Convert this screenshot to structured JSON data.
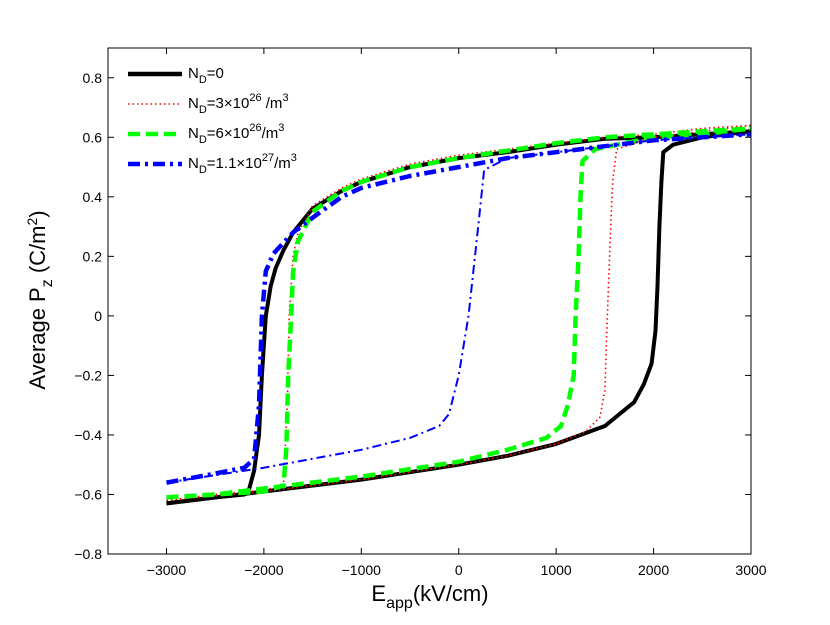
{
  "chart_data": {
    "type": "line",
    "title": "",
    "xlabel": {
      "main": "E",
      "sub": "app",
      "rest": "(kV/cm)"
    },
    "ylabel": {
      "main": "Average P",
      "sub": "z",
      "paren_open": " (C/m",
      "sup": "2",
      "paren_close": ")"
    },
    "xlim": [
      -3600,
      3000
    ],
    "ylim": [
      -0.8,
      0.9
    ],
    "xticks": [
      -3000,
      -2000,
      -1000,
      0,
      1000,
      2000,
      3000
    ],
    "xtick_labels": [
      "−3000",
      "−2000",
      "−1000",
      "0",
      "1000",
      "2000",
      "3000"
    ],
    "yticks": [
      -0.8,
      -0.6,
      -0.4,
      -0.2,
      0,
      0.2,
      0.4,
      0.6,
      0.8
    ],
    "ytick_labels": [
      "−0.8",
      "−0.6",
      "−0.4",
      "−0.2",
      "0",
      "0.2",
      "0.4",
      "0.6",
      "0.8"
    ],
    "grid": false,
    "legend_position": "top-left",
    "series": [
      {
        "name": "N_D=0",
        "legend": {
          "a": "N",
          "sub": "D",
          "b": "=0",
          "sup": "",
          "c": ""
        },
        "color": "#000000",
        "dash": "solid",
        "upper": [
          [
            -3000,
            -0.63
          ],
          [
            -2500,
            -0.61
          ],
          [
            -2200,
            -0.6
          ],
          [
            -2150,
            -0.58
          ],
          [
            -2100,
            -0.52
          ],
          [
            -2050,
            -0.4
          ],
          [
            -2020,
            -0.2
          ],
          [
            -1980,
            0.0
          ],
          [
            -1930,
            0.1
          ],
          [
            -1880,
            0.16
          ],
          [
            -1800,
            0.22
          ],
          [
            -1700,
            0.28
          ],
          [
            -1600,
            0.32
          ],
          [
            -1500,
            0.36
          ],
          [
            -1200,
            0.42
          ],
          [
            -1000,
            0.45
          ],
          [
            -500,
            0.5
          ],
          [
            0,
            0.53
          ],
          [
            500,
            0.55
          ],
          [
            1000,
            0.575
          ],
          [
            1500,
            0.595
          ],
          [
            2000,
            0.6
          ],
          [
            2500,
            0.61
          ],
          [
            3000,
            0.62
          ]
        ],
        "lower": [
          [
            -3000,
            -0.63
          ],
          [
            -2000,
            -0.59
          ],
          [
            -1000,
            -0.55
          ],
          [
            0,
            -0.5
          ],
          [
            500,
            -0.47
          ],
          [
            1000,
            -0.43
          ],
          [
            1500,
            -0.37
          ],
          [
            1800,
            -0.29
          ],
          [
            1900,
            -0.23
          ],
          [
            1980,
            -0.16
          ],
          [
            2020,
            -0.05
          ],
          [
            2040,
            0.1
          ],
          [
            2060,
            0.3
          ],
          [
            2080,
            0.45
          ],
          [
            2100,
            0.55
          ],
          [
            2200,
            0.575
          ],
          [
            2500,
            0.6
          ],
          [
            3000,
            0.62
          ]
        ]
      },
      {
        "name": "N_D=3×10^26 /m^3",
        "legend": {
          "a": "N",
          "sub": "D",
          "b": "=3×10",
          "sup": "26",
          "c": " /m",
          "sup2": "3"
        },
        "color": "#ff0000",
        "dash": "dotted",
        "upper": [
          [
            -3000,
            -0.62
          ],
          [
            -2500,
            -0.6
          ],
          [
            -2000,
            -0.585
          ],
          [
            -1800,
            -0.57
          ],
          [
            -1760,
            -0.3
          ],
          [
            -1740,
            0.0
          ],
          [
            -1700,
            0.2
          ],
          [
            -1650,
            0.28
          ],
          [
            -1500,
            0.37
          ],
          [
            -1200,
            0.43
          ],
          [
            -1000,
            0.46
          ],
          [
            -500,
            0.51
          ],
          [
            0,
            0.54
          ],
          [
            500,
            0.56
          ],
          [
            1000,
            0.58
          ],
          [
            1500,
            0.6
          ],
          [
            2000,
            0.61
          ],
          [
            2500,
            0.63
          ],
          [
            3000,
            0.64
          ]
        ],
        "lower": [
          [
            -3000,
            -0.62
          ],
          [
            -2000,
            -0.59
          ],
          [
            -1000,
            -0.55
          ],
          [
            0,
            -0.5
          ],
          [
            500,
            -0.47
          ],
          [
            1000,
            -0.43
          ],
          [
            1300,
            -0.39
          ],
          [
            1450,
            -0.34
          ],
          [
            1500,
            -0.25
          ],
          [
            1520,
            -0.05
          ],
          [
            1560,
            0.3
          ],
          [
            1580,
            0.45
          ],
          [
            1620,
            0.56
          ],
          [
            2000,
            0.6
          ],
          [
            2500,
            0.62
          ],
          [
            3000,
            0.64
          ]
        ]
      },
      {
        "name": "N_D=6×10^26/m^3",
        "legend": {
          "a": "N",
          "sub": "D",
          "b": "=6×10",
          "sup": "26",
          "c": "/m",
          "sup2": "3"
        },
        "color": "#00ff00",
        "dash": "dashed",
        "upper": [
          [
            -3000,
            -0.61
          ],
          [
            -2500,
            -0.6
          ],
          [
            -2000,
            -0.59
          ],
          [
            -1800,
            -0.57
          ],
          [
            -1770,
            -0.45
          ],
          [
            -1750,
            -0.2
          ],
          [
            -1720,
            0.0
          ],
          [
            -1700,
            0.15
          ],
          [
            -1650,
            0.25
          ],
          [
            -1500,
            0.35
          ],
          [
            -1200,
            0.42
          ],
          [
            -1000,
            0.45
          ],
          [
            -500,
            0.5
          ],
          [
            0,
            0.53
          ],
          [
            500,
            0.555
          ],
          [
            1000,
            0.58
          ],
          [
            1500,
            0.6
          ],
          [
            2000,
            0.61
          ],
          [
            2500,
            0.62
          ],
          [
            3000,
            0.63
          ]
        ],
        "lower": [
          [
            -3000,
            -0.61
          ],
          [
            -2500,
            -0.6
          ],
          [
            -2000,
            -0.58
          ],
          [
            -1000,
            -0.54
          ],
          [
            0,
            -0.49
          ],
          [
            500,
            -0.45
          ],
          [
            900,
            -0.41
          ],
          [
            1050,
            -0.37
          ],
          [
            1120,
            -0.3
          ],
          [
            1180,
            -0.2
          ],
          [
            1200,
            0.0
          ],
          [
            1230,
            0.2
          ],
          [
            1250,
            0.4
          ],
          [
            1270,
            0.52
          ],
          [
            1400,
            0.56
          ],
          [
            2000,
            0.6
          ],
          [
            2500,
            0.61
          ],
          [
            3000,
            0.63
          ]
        ]
      },
      {
        "name": "N_D=1.1×10^27/m^3",
        "legend": {
          "a": "N",
          "sub": "D",
          "b": "=1.1×10",
          "sup": "27",
          "c": "/m",
          "sup2": "3"
        },
        "color": "#0000ff",
        "dash": "dashdot",
        "upper": [
          [
            -3000,
            -0.56
          ],
          [
            -2500,
            -0.53
          ],
          [
            -2200,
            -0.51
          ],
          [
            -2100,
            -0.48
          ],
          [
            -2050,
            -0.3
          ],
          [
            -2020,
            0.0
          ],
          [
            -1980,
            0.15
          ],
          [
            -1900,
            0.21
          ],
          [
            -1700,
            0.28
          ],
          [
            -1500,
            0.33
          ],
          [
            -1200,
            0.4
          ],
          [
            -1000,
            0.43
          ],
          [
            -500,
            0.47
          ],
          [
            0,
            0.5
          ],
          [
            500,
            0.53
          ],
          [
            1000,
            0.55
          ],
          [
            1500,
            0.57
          ],
          [
            2000,
            0.59
          ],
          [
            2500,
            0.6
          ],
          [
            3000,
            0.61
          ]
        ],
        "lower": [
          [
            -3000,
            -0.56
          ],
          [
            -2000,
            -0.51
          ],
          [
            -1000,
            -0.45
          ],
          [
            -500,
            -0.41
          ],
          [
            -200,
            -0.37
          ],
          [
            -100,
            -0.33
          ],
          [
            0,
            -0.2
          ],
          [
            100,
            0.0
          ],
          [
            200,
            0.3
          ],
          [
            260,
            0.49
          ],
          [
            500,
            0.53
          ],
          [
            1000,
            0.55
          ],
          [
            2000,
            0.59
          ],
          [
            2500,
            0.6
          ],
          [
            3000,
            0.61
          ]
        ]
      }
    ]
  }
}
